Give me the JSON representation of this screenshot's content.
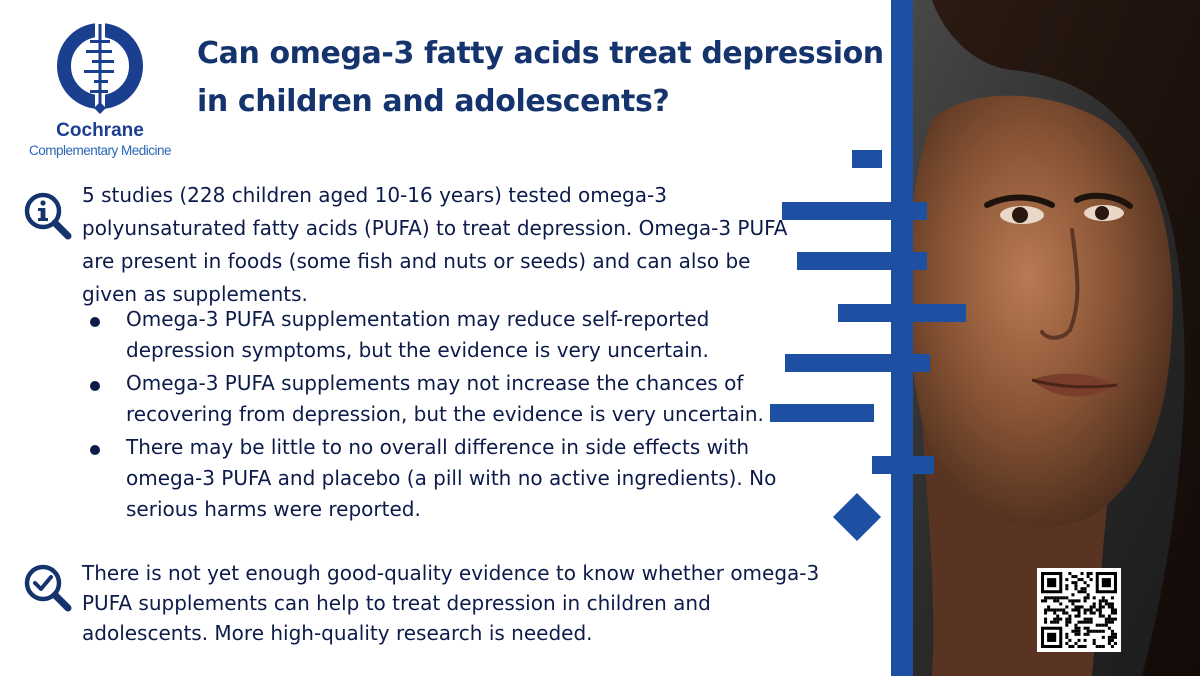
{
  "logo": {
    "name": "Cochrane",
    "subtitle": "Complementary Medicine"
  },
  "title": "Can omega-3 fatty acids treat depression in children and adolescents?",
  "intro": "5 studies (228 children aged 10-16 years) tested omega-3 polyunsaturated fatty acids (PUFA) to treat depression. Omega-3 PUFA are present in foods (some fish and nuts or seeds) and can also be given as supplements.",
  "findings": [
    "Omega-3 PUFA supplementation may reduce self-reported depression symptoms, but the evidence is very uncertain.",
    "Omega-3 PUFA supplements may not increase the chances of recovering from depression, but the evidence is very uncertain.",
    "There may be little to no overall difference in side effects with omega-3 PUFA and placebo (a pill with no active ingredients). No serious harms were reported."
  ],
  "conclusion": "There is not yet enough good-quality evidence to know whether omega-3 PUFA supplements can help to treat depression in children and adolescents. More high-quality research is needed.",
  "icons": {
    "info": "magnifier-info-icon",
    "check": "magnifier-check-icon"
  },
  "colors": {
    "brand_blue": "#1d4fa3",
    "title_navy": "#15346e",
    "text": "#0d1b4a"
  }
}
